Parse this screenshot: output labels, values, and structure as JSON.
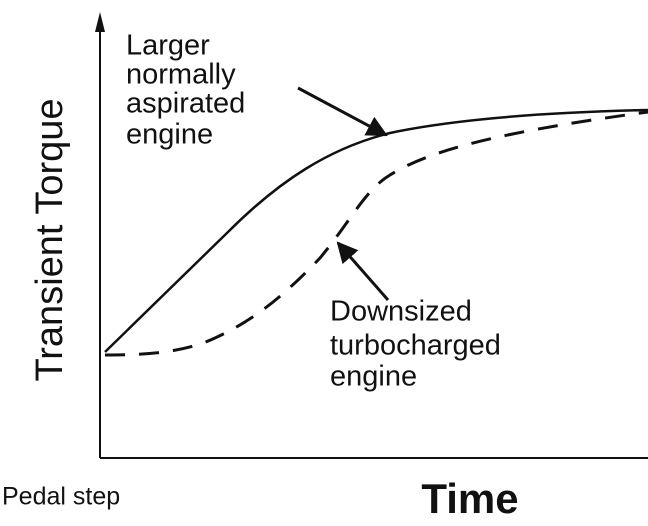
{
  "y_axis_label": "Transient Torque",
  "x_axis_label": "Time",
  "start_label": "Pedal step",
  "annotations": [
    {
      "lines": [
        "Larger",
        "normally",
        "aspirated",
        "engine"
      ]
    },
    {
      "lines": [
        "Downsized",
        "turbocharged",
        "engine"
      ]
    }
  ]
}
